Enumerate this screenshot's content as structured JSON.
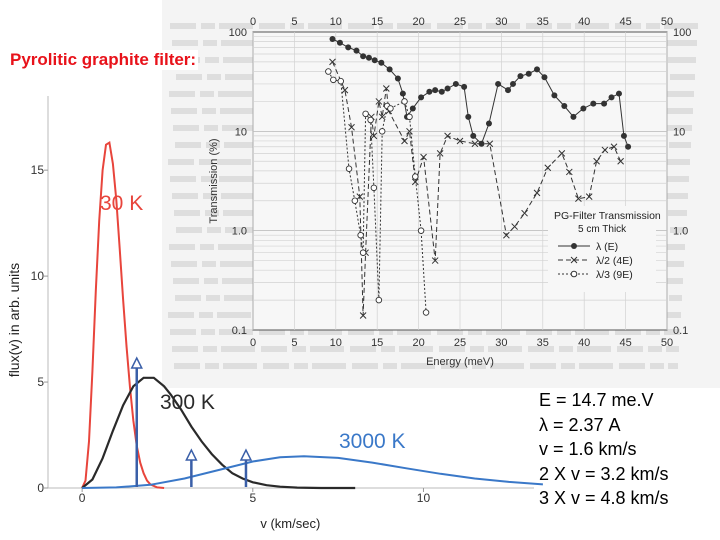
{
  "slide": {
    "title": "Pyrolitic graphite filter:",
    "info_lines": [
      "E = 14.7 me.V",
      "λ = 2.37 A",
      "v = 1.6 km/s",
      "2 X v = 3.2 km/s",
      "3 X v = 4.8 km/s"
    ]
  },
  "colors": {
    "title": "#e8121a",
    "curve_30K": "#e8453c",
    "curve_300K": "#2a2a2a",
    "curve_3000K": "#3a78c8",
    "arrows": "#3a5fa8",
    "pg_dark": "#333333"
  },
  "chart_data": [
    {
      "type": "line",
      "title": "PG-Filter Transmission",
      "subtitle": "5 cm Thick",
      "xlabel": "Energy (meV)",
      "ylabel": "Transmission (%)",
      "xlim": [
        0,
        50
      ],
      "ylim": [
        0.1,
        100
      ],
      "yscale": "log",
      "x_ticks": [
        "0",
        "5",
        "10",
        "15",
        "20",
        "25",
        "30",
        "35",
        "40",
        "45",
        "50"
      ],
      "y_ticks": [
        "0.1",
        "1.0",
        "10",
        "100"
      ],
      "legend_position": "bottom-right",
      "series": [
        {
          "name": "λ (E)",
          "marker": "filled-circle",
          "x": [
            9.6,
            10.5,
            11.5,
            12.5,
            13.3,
            14,
            14.7,
            15.5,
            16.5,
            17.5,
            18.1,
            18.6,
            19.3,
            20.3,
            21.3,
            22,
            22.8,
            23.5,
            24.5,
            25.5,
            26,
            26.6,
            27.6,
            28.5,
            29.6,
            30.8,
            31.4,
            32.3,
            33.3,
            34.3,
            35.2,
            36.4,
            37.6,
            38.7,
            39.9,
            41.1,
            42.4,
            43.3,
            44.2,
            44.8,
            45.3
          ],
          "y": [
            85,
            78,
            70,
            65,
            57,
            55,
            52,
            49,
            42,
            34,
            24,
            14,
            17,
            22,
            25,
            26,
            25,
            27,
            30,
            28,
            14,
            9,
            7.5,
            12,
            30,
            26,
            30,
            36,
            38,
            42,
            35,
            23,
            18,
            14,
            17,
            19,
            19,
            22,
            24,
            9,
            7
          ]
        },
        {
          "name": "λ/2 (4E)",
          "marker": "cross",
          "x": [
            9.6,
            11.1,
            11.9,
            12.9,
            13.3,
            13.6,
            14.3,
            14.6,
            15.2,
            15.6,
            16.1,
            16.4,
            18.3,
            18.9,
            19.6,
            20.6,
            22,
            22.6,
            23.5,
            25,
            26.8,
            28.6,
            30.6,
            31.6,
            32.8,
            34.3,
            35.6,
            37.3,
            38.2,
            39.3,
            40.6,
            41.5,
            42.5,
            43.6,
            44.4
          ],
          "y": [
            50,
            26,
            11,
            2.2,
            0.14,
            0.6,
            14,
            9,
            20,
            14,
            27,
            16,
            8,
            10,
            3.1,
            5.5,
            0.5,
            6,
            9,
            8,
            7.5,
            7.5,
            0.9,
            1.1,
            1.5,
            2.4,
            4.3,
            6,
            3.9,
            2.1,
            2.2,
            5,
            6.5,
            7,
            5
          ]
        },
        {
          "name": "λ/3 (9E)",
          "marker": "open-circle",
          "x": [
            9.1,
            9.7,
            10.6,
            11.6,
            12.3,
            13,
            13.3,
            13.6,
            14.2,
            14.6,
            15.2,
            15.6,
            16.2,
            16.6,
            18.3,
            18.9,
            19.6,
            20.3,
            20.9
          ],
          "y": [
            40,
            33,
            32,
            4.2,
            2,
            0.9,
            0.6,
            15,
            13,
            2.7,
            0.2,
            10,
            18,
            17,
            20,
            14,
            3.5,
            1.0,
            0.15
          ]
        }
      ]
    },
    {
      "type": "line",
      "xlabel": "v (km/sec)",
      "ylabel": "flux(v) in arb. units",
      "xlim": [
        -1,
        14
      ],
      "ylim": [
        0,
        18.5
      ],
      "x_ticks": [
        "0",
        "5",
        "10"
      ],
      "y_ticks": [
        "0",
        "5",
        "10",
        "15"
      ],
      "annotations": [
        "30 K",
        "300 K",
        "3000 K"
      ],
      "arrows_at_v": [
        1.6,
        3.2,
        4.8
      ],
      "series": [
        {
          "name": "30 K",
          "x": [
            0,
            0.1,
            0.2,
            0.3,
            0.4,
            0.5,
            0.6,
            0.7,
            0.8,
            0.9,
            1.0,
            1.1,
            1.2,
            1.3,
            1.4,
            1.5,
            1.6,
            1.7,
            1.8,
            1.9,
            2.0,
            2.2,
            2.4
          ],
          "y": [
            0,
            0.35,
            2.2,
            5.5,
            9.3,
            12.6,
            15.0,
            16.2,
            16.3,
            15.3,
            13.6,
            11.3,
            8.9,
            6.7,
            4.8,
            3.2,
            2.0,
            1.2,
            0.7,
            0.35,
            0.17,
            0.03,
            0
          ]
        },
        {
          "name": "300 K",
          "x": [
            0,
            0.3,
            0.6,
            0.9,
            1.2,
            1.5,
            1.8,
            2.1,
            2.4,
            2.6,
            2.9,
            3.2,
            3.5,
            3.8,
            4.1,
            4.4,
            4.7,
            5.0,
            5.4,
            5.8,
            6.3,
            7.0,
            8.0
          ],
          "y": [
            0,
            0.4,
            1.4,
            2.7,
            3.9,
            4.8,
            5.2,
            5.2,
            4.8,
            4.4,
            3.7,
            2.9,
            2.2,
            1.6,
            1.1,
            0.7,
            0.45,
            0.27,
            0.13,
            0.06,
            0.02,
            0,
            0
          ]
        },
        {
          "name": "3000 K",
          "x": [
            0,
            1,
            2,
            3,
            4,
            5,
            5.8,
            6.5,
            7.5,
            8.5,
            9.5,
            10.5,
            11.5,
            12.5,
            13.5
          ],
          "y": [
            0,
            0.03,
            0.15,
            0.45,
            0.85,
            1.25,
            1.45,
            1.5,
            1.42,
            1.2,
            0.93,
            0.67,
            0.45,
            0.29,
            0.17
          ]
        }
      ]
    }
  ]
}
